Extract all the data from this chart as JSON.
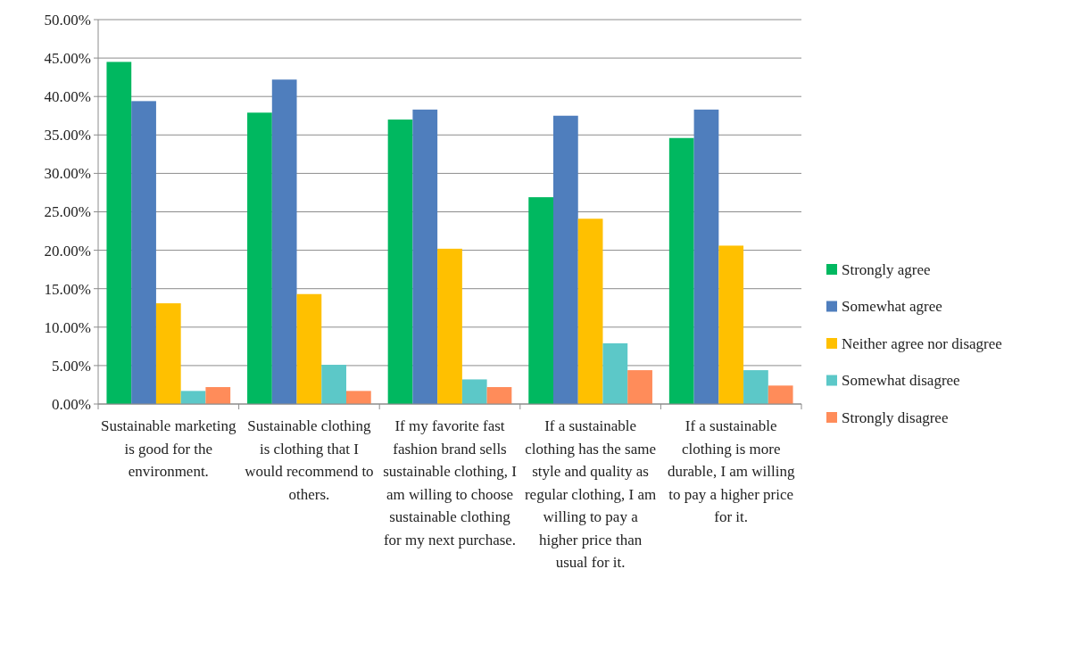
{
  "chart_data": {
    "type": "bar",
    "categories": [
      "Sustainable marketing is good for the environment.",
      "Sustainable clothing is clothing that I would recommend to others.",
      "If my favorite fast fashion brand sells sustainable clothing, I am willing to choose sustainable clothing for my next purchase.",
      "If a sustainable clothing has the same style and quality as regular clothing, I am willing to pay a higher price than usual for it.",
      "If a sustainable clothing is more durable, I am willing to pay a higher price for it."
    ],
    "series": [
      {
        "name": "Strongly agree",
        "color": "#00b860",
        "values": [
          44.5,
          37.9,
          37.0,
          26.9,
          34.6
        ]
      },
      {
        "name": "Somewhat agree",
        "color": "#4f7ebd",
        "values": [
          39.4,
          42.2,
          38.3,
          37.5,
          38.3
        ]
      },
      {
        "name": "Neither agree nor disagree",
        "color": "#ffc000",
        "values": [
          13.1,
          14.3,
          20.2,
          24.1,
          20.6
        ]
      },
      {
        "name": "Somewhat disagree",
        "color": "#5cc8c8",
        "values": [
          1.7,
          5.1,
          3.2,
          7.9,
          4.4
        ]
      },
      {
        "name": "Strongly disagree",
        "color": "#ff8c5a",
        "values": [
          2.2,
          1.7,
          2.2,
          4.4,
          2.4
        ]
      }
    ],
    "ylim": [
      0,
      50
    ],
    "yticks": [
      {
        "value": 0,
        "label": "0.00%"
      },
      {
        "value": 5,
        "label": "5.00%"
      },
      {
        "value": 10,
        "label": "10.00%"
      },
      {
        "value": 15,
        "label": "15.00%"
      },
      {
        "value": 20,
        "label": "20.00%"
      },
      {
        "value": 25,
        "label": "25.00%"
      },
      {
        "value": 30,
        "label": "30.00%"
      },
      {
        "value": 35,
        "label": "35.00%"
      },
      {
        "value": 40,
        "label": "40.00%"
      },
      {
        "value": 45,
        "label": "45.00%"
      },
      {
        "value": 50,
        "label": "50.00%"
      }
    ],
    "grid": "y",
    "legend": "right"
  }
}
